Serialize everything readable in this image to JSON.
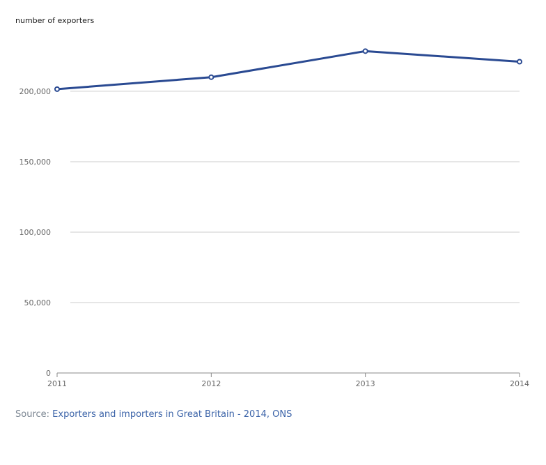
{
  "chart_data": {
    "type": "line",
    "ylabel": "number of exporters",
    "x": [
      "2011",
      "2012",
      "2013",
      "2014"
    ],
    "series": [
      {
        "values": [
          201500,
          210000,
          228500,
          221000
        ]
      }
    ],
    "ylim": [
      0,
      230000
    ],
    "yticks": [
      0,
      50000,
      100000,
      150000,
      200000
    ],
    "ytick_labels": [
      "0",
      "50,000",
      "100,000",
      "150,000",
      "200,000"
    ],
    "grid": true,
    "colors": {
      "line": "#2a4a92",
      "marker_fill": "#ffffff",
      "grid": "#cccccc",
      "axis": "#888888"
    }
  },
  "source": {
    "prefix": "Source:",
    "link_text": "Exporters and importers in Great Britain - 2014, ONS"
  }
}
